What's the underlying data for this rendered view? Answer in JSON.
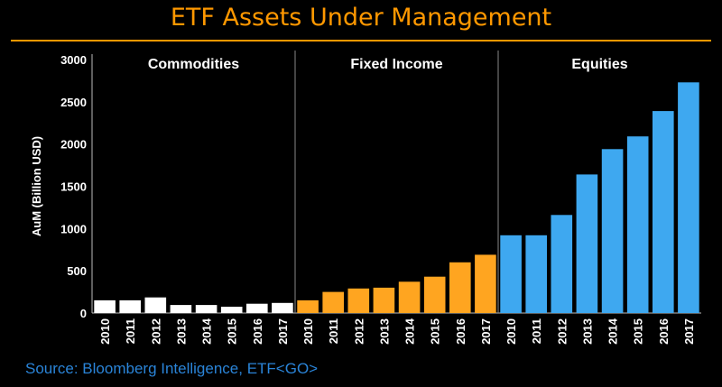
{
  "title": "ETF Assets Under Management",
  "source": "Source: Bloomberg Intelligence, ETF<GO>",
  "colors": {
    "title": "#ff9800",
    "background": "#000000",
    "source": "#2a84d8",
    "text": "#ffffff",
    "divider": "#888888"
  },
  "chart_data": {
    "type": "bar",
    "title": "ETF Assets Under Management",
    "ylabel": "AuM (Billion USD)",
    "ylim": [
      0,
      3000
    ],
    "yticks": [
      0,
      500,
      1000,
      1500,
      2000,
      2500,
      3000
    ],
    "grid": false,
    "legend": "none",
    "categories": [
      "2010",
      "2011",
      "2012",
      "2013",
      "2014",
      "2015",
      "2016",
      "2017"
    ],
    "series": [
      {
        "name": "Commodities",
        "color": "#ffffff",
        "values": [
          150,
          150,
          185,
          95,
          95,
          75,
          110,
          120
        ]
      },
      {
        "name": "Fixed Income",
        "color": "#ffa520",
        "values": [
          150,
          250,
          290,
          300,
          370,
          430,
          600,
          690
        ]
      },
      {
        "name": "Equities",
        "color": "#3ea8f0",
        "values": [
          920,
          920,
          1160,
          1640,
          1940,
          2090,
          2390,
          2730
        ]
      }
    ]
  }
}
